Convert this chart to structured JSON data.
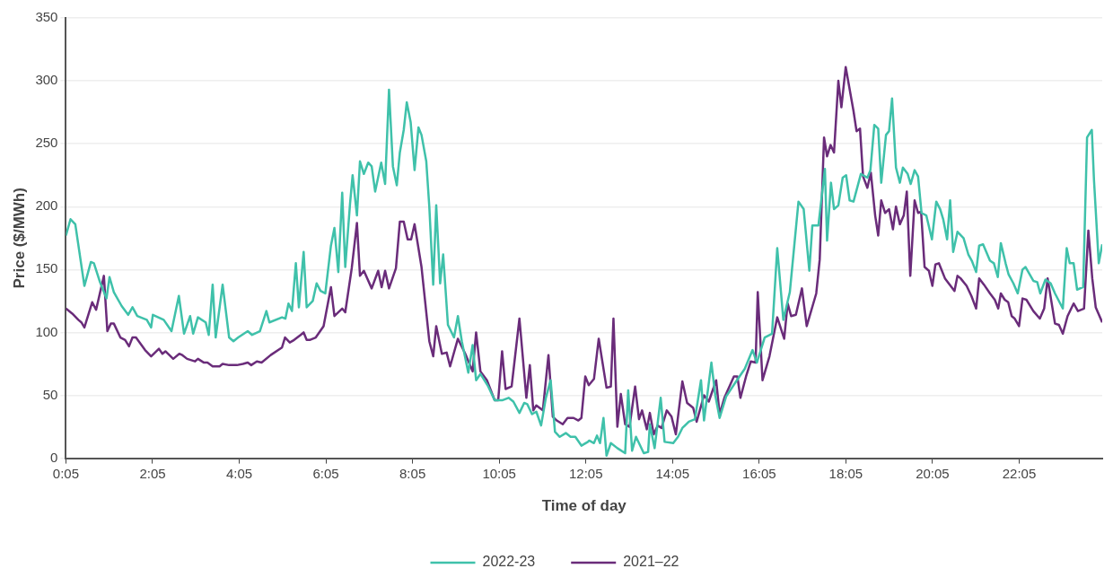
{
  "chart_data": {
    "type": "line",
    "xlabel": "Time of day",
    "ylabel": "Price ($/MWh)",
    "xlim": [
      0.0833,
      24
    ],
    "xticks": [
      {
        "value": 0.0833,
        "label": "0:05"
      },
      {
        "value": 2.0833,
        "label": "2:05"
      },
      {
        "value": 4.0833,
        "label": "4:05"
      },
      {
        "value": 6.0833,
        "label": "6:05"
      },
      {
        "value": 8.0833,
        "label": "8:05"
      },
      {
        "value": 10.0833,
        "label": "10:05"
      },
      {
        "value": 12.0833,
        "label": "12:05"
      },
      {
        "value": 14.0833,
        "label": "14:05"
      },
      {
        "value": 16.0833,
        "label": "16:05"
      },
      {
        "value": 18.0833,
        "label": "18:05"
      },
      {
        "value": 20.0833,
        "label": "20:05"
      },
      {
        "value": 22.0833,
        "label": "22:05"
      }
    ],
    "ylim": [
      0,
      350
    ],
    "yticks": [
      0,
      50,
      100,
      150,
      200,
      250,
      300,
      350
    ],
    "grid": "y",
    "legend": "bottom",
    "marker": "none",
    "line_style": "solid",
    "series": [
      {
        "name": "2022-23",
        "color": "#3fc1aa",
        "x": [
          0.0833,
          0.19,
          0.3,
          0.51,
          0.66,
          0.73,
          0.87,
          1.02,
          1.09,
          1.19,
          1.37,
          1.52,
          1.62,
          1.73,
          1.95,
          2.05,
          2.09,
          2.34,
          2.52,
          2.69,
          2.81,
          2.95,
          3.02,
          3.13,
          3.31,
          3.38,
          3.47,
          3.54,
          3.7,
          3.85,
          3.95,
          4.06,
          4.28,
          4.38,
          4.56,
          4.71,
          4.78,
          5.07,
          5.15,
          5.22,
          5.3,
          5.39,
          5.46,
          5.57,
          5.64,
          5.78,
          5.87,
          5.96,
          6.07,
          6.2,
          6.28,
          6.37,
          6.46,
          6.53,
          6.64,
          6.7,
          6.8,
          6.87,
          6.96,
          7.06,
          7.14,
          7.22,
          7.36,
          7.45,
          7.54,
          7.63,
          7.72,
          7.79,
          7.88,
          7.95,
          8.04,
          8.13,
          8.22,
          8.29,
          8.4,
          8.47,
          8.56,
          8.63,
          8.72,
          8.79,
          8.9,
          9.04,
          9.13,
          9.22,
          9.37,
          9.47,
          9.55,
          9.65,
          9.83,
          9.98,
          10.15,
          10.3,
          10.41,
          10.55,
          10.66,
          10.73,
          10.84,
          10.94,
          11.05,
          11.16,
          11.27,
          11.37,
          11.48,
          11.62,
          11.73,
          11.84,
          11.98,
          12.13,
          12.16,
          12.27,
          12.34,
          12.41,
          12.49,
          12.56,
          12.66,
          12.81,
          12.99,
          13.06,
          13.15,
          13.24,
          13.42,
          13.52,
          13.56,
          13.67,
          13.81,
          13.9,
          14.1,
          14.21,
          14.31,
          14.46,
          14.6,
          14.74,
          14.81,
          14.98,
          15.07,
          15.17,
          15.32,
          15.53,
          15.75,
          15.93,
          16.03,
          16.21,
          16.38,
          16.5,
          16.64,
          16.79,
          16.99,
          17.11,
          17.24,
          17.31,
          17.45,
          17.6,
          17.65,
          17.74,
          17.81,
          17.91,
          18.01,
          18.09,
          18.17,
          18.26,
          18.43,
          18.58,
          18.65,
          18.74,
          18.83,
          18.9,
          19.01,
          19.08,
          19.15,
          19.24,
          19.33,
          19.4,
          19.51,
          19.58,
          19.67,
          19.75,
          19.83,
          19.94,
          20.07,
          20.17,
          20.26,
          20.33,
          20.42,
          20.49,
          20.56,
          20.66,
          20.8,
          20.91,
          20.99,
          21.09,
          21.16,
          21.25,
          21.41,
          21.5,
          21.59,
          21.66,
          21.77,
          21.84,
          21.95,
          22.05,
          22.16,
          22.23,
          22.41,
          22.5,
          22.57,
          22.69,
          22.81,
          22.91,
          23.09,
          23.18,
          23.25,
          23.34,
          23.42,
          23.56,
          23.65,
          23.76,
          23.81,
          23.92,
          24
        ],
        "values": [
          177,
          190,
          186,
          137,
          156,
          155,
          140,
          127,
          144,
          132,
          121,
          114,
          120,
          113,
          110,
          104,
          114,
          110,
          101,
          129,
          99,
          113,
          99,
          112,
          108,
          98,
          138,
          96,
          138,
          96,
          93,
          96,
          101,
          98,
          101,
          117,
          108,
          112,
          111,
          123,
          117,
          155,
          120,
          164,
          120,
          125,
          139,
          133,
          131,
          169,
          183,
          148,
          211,
          152,
          202,
          225,
          193,
          236,
          226,
          235,
          232,
          212,
          235,
          218,
          293,
          232,
          217,
          243,
          261,
          283,
          267,
          229,
          263,
          257,
          236,
          200,
          138,
          201,
          139,
          162,
          106,
          96,
          113,
          93,
          68,
          90,
          62,
          67,
          57,
          46,
          46,
          48,
          45,
          36,
          44,
          43,
          35,
          37,
          26,
          48,
          62,
          21,
          17,
          20,
          17,
          17,
          10,
          13,
          14,
          12,
          18,
          12,
          32,
          2,
          12,
          8,
          4,
          54,
          6,
          17,
          4,
          5,
          27,
          8,
          48,
          13,
          12,
          17,
          24,
          29,
          31,
          62,
          30,
          76,
          50,
          32,
          49,
          60,
          71,
          86,
          76,
          96,
          99,
          167,
          110,
          132,
          204,
          198,
          149,
          185,
          185,
          230,
          173,
          219,
          198,
          201,
          223,
          225,
          205,
          204,
          226,
          223,
          229,
          265,
          262,
          219,
          257,
          260,
          286,
          231,
          219,
          231,
          226,
          218,
          229,
          224,
          195,
          193,
          174,
          204,
          198,
          190,
          174,
          205,
          164,
          180,
          175,
          162,
          157,
          148,
          169,
          170,
          157,
          155,
          144,
          171,
          155,
          146,
          139,
          131,
          150,
          152,
          141,
          140,
          131,
          142,
          139,
          131,
          119,
          167,
          155,
          155,
          134,
          136,
          255,
          261,
          221,
          155,
          170
        ]
      },
      {
        "name": "2021–22",
        "color": "#6a2c7a",
        "x": [
          0.0833,
          0.23,
          0.37,
          0.44,
          0.51,
          0.69,
          0.78,
          0.96,
          1.04,
          1.12,
          1.19,
          1.34,
          1.45,
          1.54,
          1.62,
          1.7,
          1.91,
          2.05,
          2.23,
          2.31,
          2.38,
          2.56,
          2.7,
          2.77,
          2.88,
          3.06,
          3.13,
          3.27,
          3.35,
          3.47,
          3.63,
          3.7,
          3.85,
          4.03,
          4.17,
          4.28,
          4.36,
          4.49,
          4.6,
          4.81,
          5.07,
          5.14,
          5.25,
          5.35,
          5.5,
          5.57,
          5.64,
          5.71,
          5.85,
          6.03,
          6.2,
          6.28,
          6.46,
          6.53,
          6.68,
          6.8,
          6.87,
          6.96,
          7.14,
          7.29,
          7.37,
          7.45,
          7.54,
          7.7,
          7.79,
          7.88,
          7.97,
          8.05,
          8.13,
          8.29,
          8.47,
          8.56,
          8.63,
          8.76,
          8.87,
          8.95,
          9.13,
          9.3,
          9.47,
          9.55,
          9.65,
          9.8,
          9.98,
          10.06,
          10.15,
          10.23,
          10.37,
          10.55,
          10.71,
          10.79,
          10.87,
          10.94,
          11.09,
          11.22,
          11.32,
          11.41,
          11.55,
          11.66,
          11.8,
          11.91,
          11.98,
          12.07,
          12.15,
          12.27,
          12.38,
          12.56,
          12.66,
          12.72,
          12.81,
          12.89,
          12.99,
          13.09,
          13.22,
          13.31,
          13.38,
          13.49,
          13.56,
          13.65,
          13.74,
          13.83,
          13.95,
          14.06,
          14.16,
          14.31,
          14.42,
          14.56,
          14.64,
          14.81,
          14.92,
          15.09,
          15.17,
          15.28,
          15.5,
          15.58,
          15.65,
          15.78,
          15.89,
          16,
          16.05,
          16.16,
          16.32,
          16.5,
          16.66,
          16.74,
          16.82,
          16.93,
          17.07,
          17.18,
          17.4,
          17.48,
          17.58,
          17.65,
          17.73,
          17.81,
          17.91,
          17.98,
          18.08,
          18.26,
          18.33,
          18.41,
          18.48,
          18.58,
          18.66,
          18.76,
          18.83,
          18.9,
          18.99,
          19.08,
          19.17,
          19.24,
          19.33,
          19.42,
          19.49,
          19.57,
          19.67,
          19.75,
          19.82,
          19.9,
          20,
          20.08,
          20.15,
          20.23,
          20.37,
          20.48,
          20.59,
          20.66,
          20.73,
          20.87,
          20.98,
          21.09,
          21.16,
          21.27,
          21.41,
          21.52,
          21.6,
          21.66,
          21.75,
          21.83,
          21.91,
          21.98,
          22.08,
          22.16,
          22.25,
          22.41,
          22.56,
          22.66,
          22.74,
          22.91,
          23,
          23.09,
          23.2,
          23.34,
          23.44,
          23.58,
          23.68,
          23.77,
          23.85,
          24
        ],
        "values": [
          119,
          115,
          110,
          108,
          104,
          124,
          118,
          145,
          101,
          107,
          107,
          96,
          94,
          89,
          96,
          96,
          86,
          81,
          87,
          83,
          85,
          79,
          83,
          82,
          79,
          77,
          79,
          76,
          76,
          73,
          73,
          75,
          74,
          74,
          75,
          76,
          74,
          77,
          76,
          82,
          88,
          96,
          92,
          94,
          98,
          100,
          94,
          94,
          96,
          105,
          136,
          113,
          119,
          116,
          151,
          187,
          145,
          149,
          135,
          149,
          136,
          149,
          135,
          151,
          188,
          188,
          174,
          174,
          186,
          152,
          93,
          81,
          105,
          83,
          84,
          73,
          95,
          83,
          69,
          100,
          69,
          62,
          46,
          46,
          85,
          55,
          57,
          111,
          48,
          74,
          38,
          42,
          38,
          82,
          33,
          30,
          27,
          32,
          32,
          30,
          32,
          65,
          58,
          63,
          95,
          56,
          57,
          111,
          25,
          51,
          27,
          25,
          57,
          31,
          38,
          23,
          36,
          19,
          26,
          24,
          38,
          33,
          19,
          61,
          44,
          40,
          29,
          50,
          45,
          62,
          35,
          48,
          65,
          65,
          48,
          65,
          77,
          76,
          132,
          62,
          81,
          112,
          95,
          123,
          113,
          114,
          135,
          105,
          131,
          158,
          255,
          240,
          249,
          243,
          300,
          279,
          311,
          276,
          260,
          262,
          224,
          215,
          227,
          193,
          177,
          205,
          195,
          198,
          182,
          200,
          186,
          193,
          212,
          145,
          205,
          195,
          196,
          152,
          149,
          137,
          154,
          155,
          143,
          138,
          133,
          145,
          143,
          137,
          129,
          119,
          143,
          138,
          131,
          126,
          119,
          131,
          126,
          124,
          113,
          111,
          105,
          127,
          126,
          117,
          111,
          119,
          143,
          107,
          106,
          99,
          113,
          123,
          117,
          119,
          181,
          143,
          120,
          108
        ]
      }
    ]
  }
}
